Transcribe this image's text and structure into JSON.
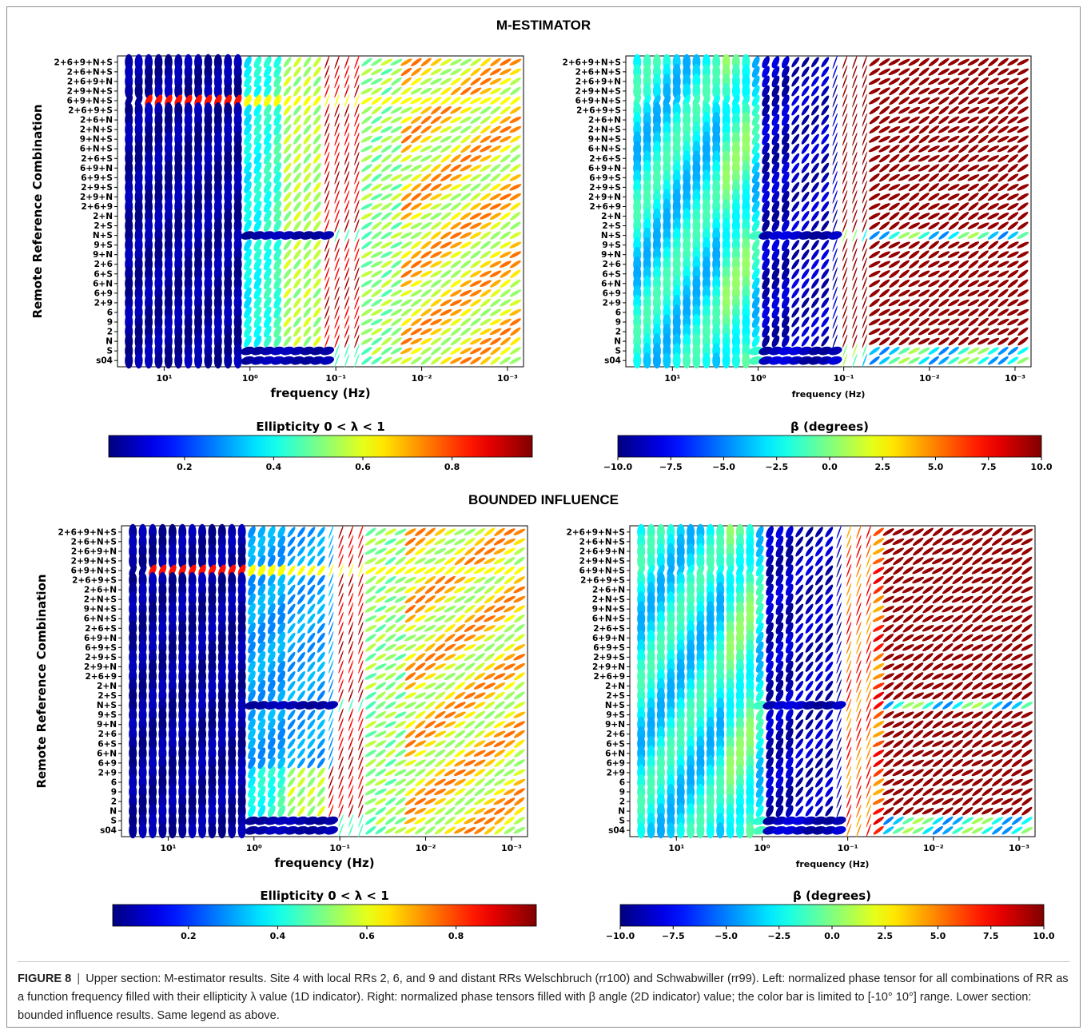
{
  "caption": {
    "label": "FIGURE 8",
    "separator": "|",
    "text": "Upper section: M-estimator results. Site 4 with local RRs 2, 6, and 9 and distant RRs Welschbruch (rr100) and Schwabwiller (rr99). Left: normalized phase tensor for all combinations of RR as a function frequency filled with their ellipticity λ value (1D indicator). Right: normalized phase tensors filled with β angle (2D indicator) value; the color bar is limited to [-10° 10°] range. Lower section: bounded influence results. Same legend as above."
  },
  "sections": [
    {
      "title": "M-ESTIMATOR"
    },
    {
      "title": "BOUNDED INFLUENCE"
    }
  ],
  "colormap": "jet",
  "chart_data": [
    {
      "type": "heatmap",
      "panel": "M-estimator ellipticity",
      "ylabel": "Remote Reference Combination",
      "xlabel": "frequency (Hz)",
      "x_scale": "log",
      "x_ticks": [
        {
          "value": 10,
          "label": "10¹"
        },
        {
          "value": 1,
          "label": "10⁰"
        },
        {
          "value": 0.1,
          "label": "10⁻¹"
        },
        {
          "value": 0.01,
          "label": "10⁻²"
        },
        {
          "value": 0.001,
          "label": "10⁻³"
        }
      ],
      "xlim": [
        35,
        0.00065
      ],
      "categories": [
        "2+6+9+N+S",
        "2+6+N+S",
        "2+6+9+N",
        "2+9+N+S",
        "6+9+N+S",
        "2+6+9+S",
        "2+6+N",
        "2+N+S",
        "9+N+S",
        "6+N+S",
        "2+6+S",
        "6+9+N",
        "6+9+S",
        "2+9+S",
        "2+9+N",
        "2+6+9",
        "2+N",
        "2+S",
        "N+S",
        "9+S",
        "9+N",
        "2+6",
        "6+S",
        "6+N",
        "6+9",
        "2+9",
        "6",
        "9",
        "2",
        "N",
        "S",
        "s04"
      ],
      "colorbar": {
        "label": "Ellipticity 0 < λ < 1",
        "ticks": [
          0.2,
          0.4,
          0.6,
          0.8
        ],
        "tick_labels": [
          "0.2",
          "0.4",
          "0.6",
          "0.8"
        ],
        "range": [
          0.03,
          0.98
        ]
      }
    },
    {
      "type": "heatmap",
      "panel": "M-estimator beta",
      "ylabel": "",
      "xlabel": "frequency (Hz)",
      "x_scale": "log",
      "x_ticks": [
        {
          "value": 10,
          "label": "10¹"
        },
        {
          "value": 1,
          "label": "10⁰"
        },
        {
          "value": 0.1,
          "label": "10⁻¹"
        },
        {
          "value": 0.01,
          "label": "10⁻²"
        },
        {
          "value": 0.001,
          "label": "10⁻³"
        }
      ],
      "xlim": [
        35,
        0.00065
      ],
      "categories": [
        "2+6+9+N+S",
        "2+6+N+S",
        "2+6+9+N",
        "2+9+N+S",
        "6+9+N+S",
        "2+6+9+S",
        "2+6+N",
        "2+N+S",
        "9+N+S",
        "6+N+S",
        "2+6+S",
        "6+9+N",
        "6+9+S",
        "2+9+S",
        "2+9+N",
        "2+6+9",
        "2+N",
        "2+S",
        "N+S",
        "9+S",
        "9+N",
        "2+6",
        "6+S",
        "6+N",
        "6+9",
        "2+9",
        "6",
        "9",
        "2",
        "N",
        "S",
        "s04"
      ],
      "colorbar": {
        "label": "β (degrees)",
        "ticks": [
          -10,
          -7.5,
          -5,
          -2.5,
          0,
          2.5,
          5,
          7.5,
          10
        ],
        "tick_labels": [
          "−10.0",
          "−7.5",
          "−5.0",
          "−2.5",
          "0.0",
          "2.5",
          "5.0",
          "7.5",
          "10.0"
        ],
        "range": [
          -10,
          10
        ]
      }
    },
    {
      "type": "heatmap",
      "panel": "Bounded influence ellipticity",
      "ylabel": "Remote Reference Combination",
      "xlabel": "frequency (Hz)",
      "x_scale": "log",
      "x_ticks": [
        {
          "value": 10,
          "label": "10¹"
        },
        {
          "value": 1,
          "label": "10⁰"
        },
        {
          "value": 0.1,
          "label": "10⁻¹"
        },
        {
          "value": 0.01,
          "label": "10⁻²"
        },
        {
          "value": 0.001,
          "label": "10⁻³"
        }
      ],
      "xlim": [
        35,
        0.00065
      ],
      "categories": [
        "2+6+9+N+S",
        "2+6+N+S",
        "2+6+9+N",
        "2+9+N+S",
        "6+9+N+S",
        "2+6+9+S",
        "2+6+N",
        "2+N+S",
        "9+N+S",
        "6+N+S",
        "2+6+S",
        "6+9+N",
        "6+9+S",
        "2+9+S",
        "2+9+N",
        "2+6+9",
        "2+N",
        "2+S",
        "N+S",
        "9+S",
        "9+N",
        "2+6",
        "6+S",
        "6+N",
        "6+9",
        "2+9",
        "6",
        "9",
        "2",
        "N",
        "S",
        "s04"
      ],
      "colorbar": {
        "label": "Ellipticity 0 < λ < 1",
        "ticks": [
          0.2,
          0.4,
          0.6,
          0.8
        ],
        "tick_labels": [
          "0.2",
          "0.4",
          "0.6",
          "0.8"
        ],
        "range": [
          0.03,
          0.98
        ]
      }
    },
    {
      "type": "heatmap",
      "panel": "Bounded influence beta",
      "ylabel": "",
      "xlabel": "frequency (Hz)",
      "x_scale": "log",
      "x_ticks": [
        {
          "value": 10,
          "label": "10¹"
        },
        {
          "value": 1,
          "label": "10⁰"
        },
        {
          "value": 0.1,
          "label": "10⁻¹"
        },
        {
          "value": 0.01,
          "label": "10⁻²"
        },
        {
          "value": 0.001,
          "label": "10⁻³"
        }
      ],
      "xlim": [
        35,
        0.00065
      ],
      "categories": [
        "2+6+9+N+S",
        "2+6+N+S",
        "2+6+9+N",
        "2+9+N+S",
        "6+9+N+S",
        "2+6+9+S",
        "2+6+N",
        "2+N+S",
        "9+N+S",
        "6+N+S",
        "2+6+S",
        "6+9+N",
        "6+9+S",
        "2+9+S",
        "2+9+N",
        "2+6+9",
        "2+N",
        "2+S",
        "N+S",
        "9+S",
        "9+N",
        "2+6",
        "6+S",
        "6+N",
        "6+9",
        "2+9",
        "6",
        "9",
        "2",
        "N",
        "S",
        "s04"
      ],
      "colorbar": {
        "label": "β (degrees)",
        "ticks": [
          -10,
          -7.5,
          -5,
          -2.5,
          0,
          2.5,
          5,
          7.5,
          10
        ],
        "tick_labels": [
          "−10.0",
          "−7.5",
          "−5.0",
          "−2.5",
          "0.0",
          "2.5",
          "5.0",
          "7.5",
          "10.0"
        ],
        "range": [
          -10,
          10
        ]
      }
    }
  ]
}
